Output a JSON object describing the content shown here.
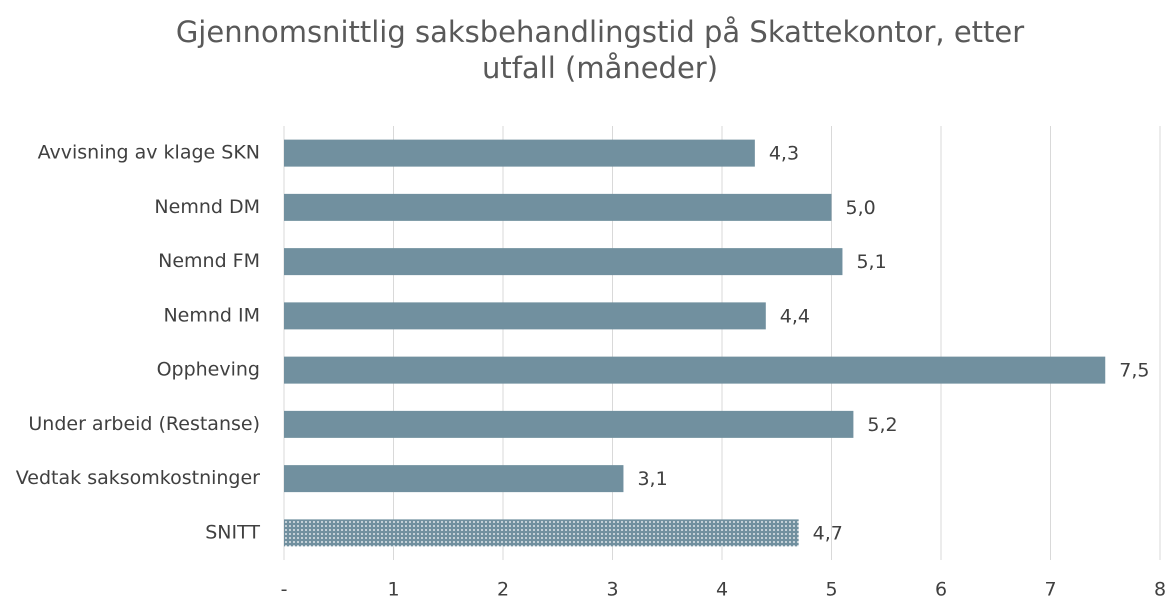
{
  "chart_data": {
    "type": "bar",
    "orientation": "horizontal",
    "title": "Gjennomsnittlig saksbehandlingstid på Skattekontor, etter utfall (måneder)",
    "categories": [
      "Avvisning av klage SKN",
      "Nemnd DM",
      "Nemnd FM",
      "Nemnd IM",
      "Oppheving",
      "Under arbeid (Restanse)",
      "Vedtak saksomkostninger",
      "SNITT"
    ],
    "values": [
      4.3,
      5.0,
      5.1,
      4.4,
      7.5,
      5.2,
      3.1,
      4.7
    ],
    "value_labels": [
      "4,3",
      "5,0",
      "5,1",
      "4,4",
      "7,5",
      "5,2",
      "3,1",
      "4,7"
    ],
    "color": "#71909f",
    "patterns": [
      null,
      null,
      null,
      null,
      null,
      null,
      null,
      "dots"
    ],
    "xlim": [
      0,
      8
    ],
    "xticks": [
      {
        "value": 0,
        "label": "-"
      },
      1,
      2,
      3,
      4,
      5,
      6,
      7,
      8
    ],
    "grid": true
  }
}
